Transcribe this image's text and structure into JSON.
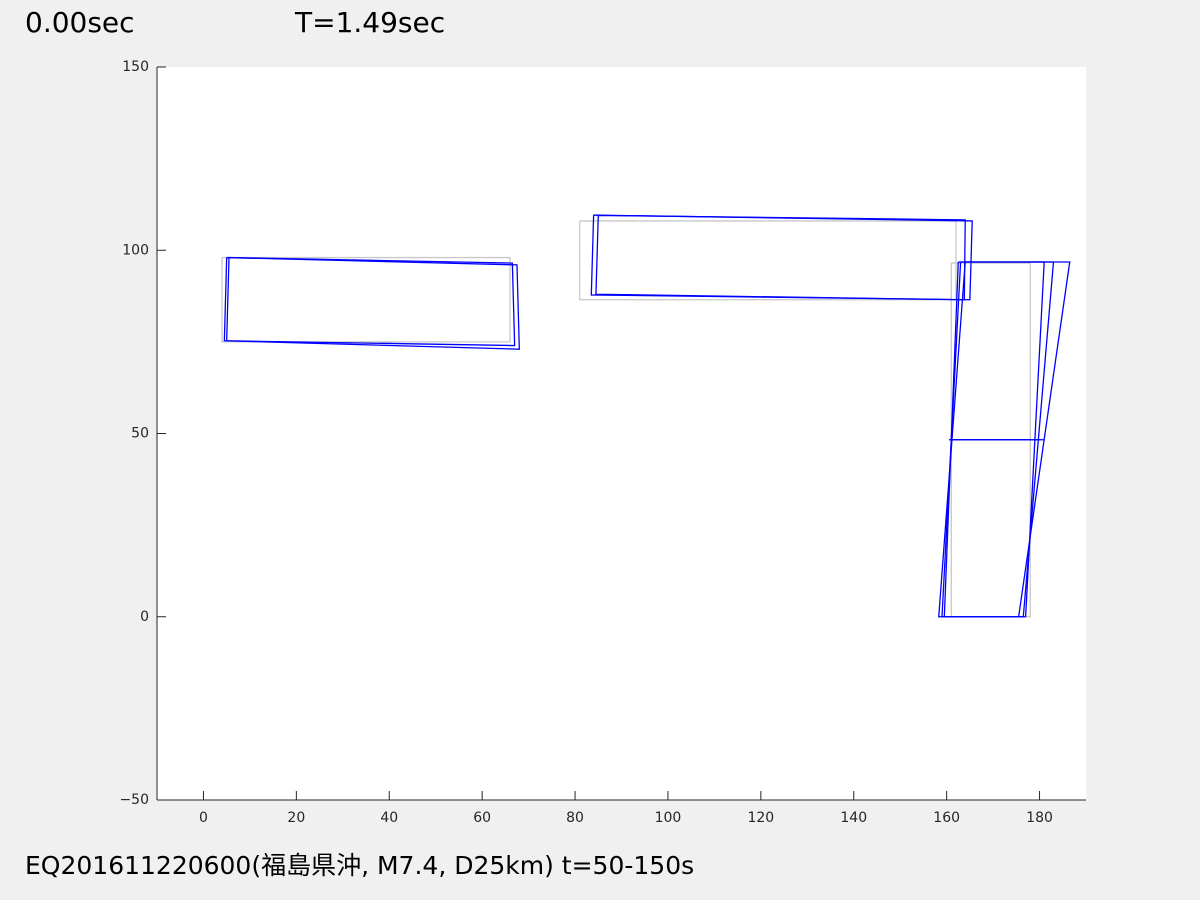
{
  "chart_data": {
    "type": "line",
    "time_label": "0.00sec",
    "title": "T=1.49sec",
    "caption": "EQ201611220600(福島県沖, M7.4, D25km) t=50-150s",
    "xlim": [
      -10,
      190
    ],
    "ylim": [
      -50,
      150
    ],
    "xticks": [
      0,
      20,
      40,
      60,
      80,
      100,
      120,
      140,
      160,
      180
    ],
    "yticks": [
      {
        "value": -50,
        "label": "−50"
      },
      0,
      50,
      100,
      150
    ],
    "series": [
      {
        "color": "#c8c8c8",
        "x": [
          4,
          66,
          66,
          4,
          4,
          null,
          81,
          162,
          162,
          81,
          81,
          null,
          161,
          178,
          178,
          161,
          161,
          null,
          161,
          178
        ],
        "y": [
          98,
          98,
          75,
          75,
          98,
          null,
          108,
          108,
          86.5,
          86.5,
          108,
          null,
          96.5,
          96.5,
          0,
          0,
          96.5,
          null,
          48.3,
          48.3
        ]
      },
      {
        "color": "#0000ff",
        "x": [
          5.5,
          66.5,
          67,
          5,
          5.5,
          null,
          85,
          164,
          163.8,
          84.5,
          85,
          null,
          163,
          183,
          176.5,
          159,
          163,
          null,
          160.5,
          180
        ],
        "y": [
          98,
          96.5,
          74,
          75.3,
          98,
          null,
          109.5,
          108.3,
          86.5,
          88,
          109.5,
          null,
          96.8,
          96.8,
          0,
          0,
          96.8,
          null,
          48.3,
          48.3
        ]
      },
      {
        "color": "#0000ff",
        "x": [
          5,
          67.5,
          68,
          4.5,
          5,
          null,
          84,
          165.5,
          165,
          83.5,
          84,
          null,
          164,
          186.5,
          175.5,
          158.3,
          164,
          null,
          161.3,
          180.9
        ],
        "y": [
          98,
          96,
          73,
          75.3,
          98,
          null,
          109.6,
          108,
          86.5,
          87.8,
          109.6,
          null,
          96.8,
          96.8,
          0,
          0,
          96.8,
          null,
          48.3,
          48.3
        ]
      },
      {
        "color": "#0000ff",
        "x": [
          162.5,
          181,
          177,
          159.5,
          162.5
        ],
        "y": [
          96.8,
          96.8,
          0,
          0,
          96.8
        ]
      }
    ]
  }
}
